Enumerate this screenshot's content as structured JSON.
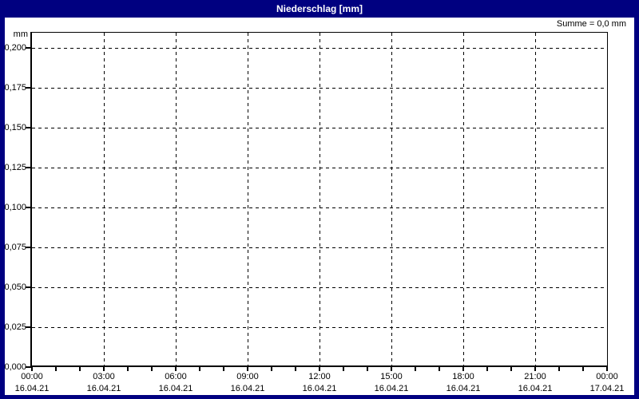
{
  "window": {
    "title": "Niederschlag [mm]"
  },
  "header": {
    "sum_label": "Summe = 0,0 mm"
  },
  "colors": {
    "titlebar_bg": "#000080",
    "titlebar_text": "#ffffff",
    "window_border": "#000080",
    "background": "#ffffff",
    "axis": "#000000",
    "grid": "#000000",
    "text": "#000000"
  },
  "chart_data": {
    "type": "bar",
    "title": "Niederschlag [mm]",
    "unit": "mm",
    "sum_text": "Summe = 0,0 mm",
    "sum_value_mm": 0.0,
    "ylim": [
      0.0,
      0.2
    ],
    "y_tick_step": 0.025,
    "y_tick_labels": [
      "0,200",
      "0,175",
      "0,150",
      "0,125",
      "0,100",
      "0,075",
      "0,050",
      "0,025",
      "0,000"
    ],
    "x_major_ticks": [
      {
        "time": "00:00",
        "date": "16.04.21"
      },
      {
        "time": "03:00",
        "date": "16.04.21"
      },
      {
        "time": "06:00",
        "date": "16.04.21"
      },
      {
        "time": "09:00",
        "date": "16.04.21"
      },
      {
        "time": "12:00",
        "date": "16.04.21"
      },
      {
        "time": "15:00",
        "date": "16.04.21"
      },
      {
        "time": "18:00",
        "date": "16.04.21"
      },
      {
        "time": "21:00",
        "date": "16.04.21"
      },
      {
        "time": "00:00",
        "date": "17.04.21"
      }
    ],
    "hours_span": 24,
    "minor_tick_every_hours": 1,
    "grid_style": "dashed",
    "legend": "none",
    "series": [
      {
        "name": "Niederschlag",
        "values": []
      }
    ]
  }
}
